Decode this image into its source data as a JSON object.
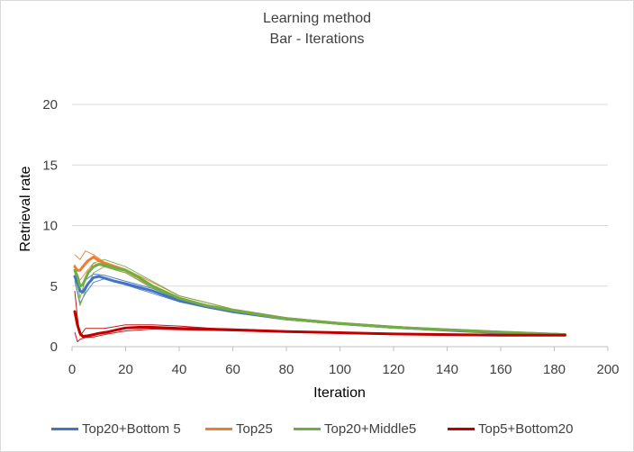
{
  "chart_data": {
    "type": "line",
    "title": "Learning method",
    "subtitle": "Bar - Iterations",
    "xlabel": "Iteration",
    "ylabel": "Retrieval rate",
    "xlim": [
      0,
      200
    ],
    "ylim": [
      0,
      20
    ],
    "xticks": [
      0,
      20,
      40,
      60,
      80,
      100,
      120,
      140,
      160,
      180,
      200
    ],
    "yticks": [
      0,
      5,
      10,
      15,
      20
    ],
    "grid": "horizontal",
    "legend_position": "bottom",
    "series": [
      {
        "name": "Top20+Bottom 5",
        "color": "#4472c4",
        "x": [
          1,
          2,
          3,
          4,
          6,
          8,
          10,
          13,
          16,
          20,
          25,
          30,
          40,
          50,
          60,
          80,
          100,
          120,
          140,
          160,
          184
        ],
        "y": [
          5.8,
          5.3,
          4.6,
          4.5,
          5.2,
          5.7,
          5.8,
          5.6,
          5.4,
          5.2,
          4.9,
          4.6,
          3.8,
          3.3,
          2.9,
          2.3,
          1.9,
          1.6,
          1.35,
          1.15,
          1.0
        ],
        "thin": [
          {
            "x": [
              1,
              3,
              5,
              8,
              12,
              20,
              30,
              40,
              60,
              80,
              100,
              140,
              184
            ],
            "y": [
              5.6,
              3.6,
              4.4,
              5.3,
              5.6,
              5.1,
              4.4,
              3.7,
              2.8,
              2.2,
              1.9,
              1.35,
              1.0
            ]
          },
          {
            "x": [
              1,
              3,
              5,
              8,
              12,
              20,
              30,
              40,
              60,
              80,
              100,
              140,
              184
            ],
            "y": [
              6.1,
              5.0,
              5.5,
              6.0,
              5.9,
              5.4,
              4.8,
              3.9,
              3.0,
              2.4,
              1.95,
              1.4,
              1.0
            ]
          }
        ]
      },
      {
        "name": "Top25",
        "color": "#ed7d31",
        "x": [
          1,
          2,
          3,
          4,
          6,
          8,
          10,
          13,
          16,
          20,
          25,
          30,
          40,
          50,
          60,
          80,
          100,
          120,
          140,
          160,
          184
        ],
        "y": [
          6.6,
          6.3,
          6.3,
          6.6,
          7.1,
          7.4,
          7.1,
          6.8,
          6.6,
          6.3,
          5.7,
          5.0,
          4.0,
          3.4,
          3.0,
          2.3,
          1.9,
          1.6,
          1.4,
          1.2,
          1.0
        ],
        "thin": [
          {
            "x": [
              1,
              3,
              5,
              8,
              12,
              20,
              30,
              40,
              60,
              80,
              100,
              140,
              184
            ],
            "y": [
              7.6,
              7.2,
              7.9,
              7.6,
              7.0,
              6.4,
              5.3,
              4.2,
              3.1,
              2.4,
              1.95,
              1.4,
              1.0
            ]
          },
          {
            "x": [
              1,
              3,
              5,
              8,
              12,
              20,
              30,
              40,
              60,
              80,
              100,
              140,
              184
            ],
            "y": [
              6.0,
              5.5,
              6.1,
              6.9,
              6.6,
              6.1,
              4.9,
              3.9,
              2.9,
              2.3,
              1.9,
              1.35,
              1.0
            ]
          }
        ]
      },
      {
        "name": "Top20+Middle5",
        "color": "#70ad47",
        "x": [
          1,
          2,
          3,
          4,
          6,
          8,
          10,
          13,
          16,
          20,
          25,
          30,
          40,
          50,
          60,
          80,
          100,
          120,
          140,
          160,
          184
        ],
        "y": [
          6.3,
          5.8,
          5.0,
          5.1,
          6.1,
          6.6,
          6.8,
          6.7,
          6.5,
          6.3,
          5.7,
          5.0,
          4.0,
          3.4,
          3.0,
          2.3,
          1.9,
          1.6,
          1.4,
          1.2,
          1.0
        ],
        "thin": [
          {
            "x": [
              1,
              3,
              5,
              8,
              12,
              20,
              30,
              40,
              60,
              80,
              100,
              140,
              184
            ],
            "y": [
              6.8,
              4.0,
              5.6,
              6.9,
              7.2,
              6.6,
              5.4,
              4.2,
              3.1,
              2.4,
              2.0,
              1.4,
              1.0
            ]
          },
          {
            "x": [
              1,
              3,
              5,
              8,
              12,
              20,
              30,
              40,
              60,
              80,
              100,
              140,
              184
            ],
            "y": [
              5.4,
              3.4,
              4.6,
              6.1,
              6.6,
              6.1,
              4.8,
              3.9,
              2.9,
              2.3,
              1.9,
              1.35,
              1.0
            ]
          }
        ]
      },
      {
        "name": "Top5+Bottom20",
        "color": "#c00000",
        "x": [
          1,
          2,
          3,
          4,
          6,
          8,
          10,
          13,
          16,
          20,
          25,
          30,
          40,
          50,
          60,
          80,
          100,
          120,
          140,
          160,
          184
        ],
        "y": [
          2.9,
          1.8,
          1.1,
          0.85,
          0.9,
          1.0,
          1.1,
          1.2,
          1.35,
          1.55,
          1.6,
          1.6,
          1.5,
          1.45,
          1.4,
          1.25,
          1.15,
          1.05,
          1.0,
          0.95,
          0.95
        ],
        "thin": [
          {
            "x": [
              1,
              2,
              3,
              5,
              8,
              12,
              20,
              30,
              40,
              60,
              80,
              120,
              184
            ],
            "y": [
              4.6,
              2.4,
              0.9,
              1.5,
              1.5,
              1.5,
              1.8,
              1.8,
              1.7,
              1.4,
              1.3,
              1.1,
              0.95
            ]
          },
          {
            "x": [
              1,
              2,
              3,
              5,
              8,
              12,
              20,
              30,
              40,
              60,
              80,
              120,
              184
            ],
            "y": [
              1.2,
              0.4,
              0.6,
              0.75,
              0.8,
              1.0,
              1.3,
              1.45,
              1.4,
              1.3,
              1.2,
              1.0,
              0.9
            ]
          }
        ]
      }
    ]
  }
}
